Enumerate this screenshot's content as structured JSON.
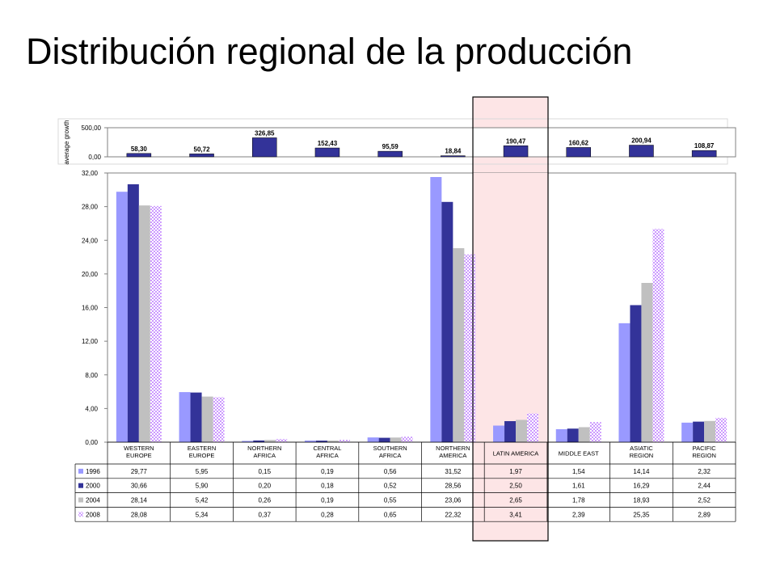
{
  "title": "Distribución regional de la producción",
  "colors": {
    "s1996": "#9999ff",
    "s2000": "#333399",
    "s2004": "#c0c0c0",
    "s2008": "#cc99ff",
    "highlight_fill": "#fde5e6",
    "highlight_stroke": "#000000",
    "growth_bar": "#333399"
  },
  "chart_data": [
    {
      "type": "bar",
      "ylabel": "average growth",
      "categories": [
        "WESTERN EUROPE",
        "EASTERN EUROPE",
        "NORTHERN AFRICA",
        "CENTRAL AFRICA",
        "SOUTHERN AFRICA",
        "NORTHERN AMERICA",
        "LATIN AMERICA",
        "MIDDLE EAST",
        "ASIATIC REGION",
        "PACIFIC REGION"
      ],
      "values": [
        58.3,
        50.72,
        326.85,
        152.43,
        95.59,
        18.84,
        190.47,
        160.62,
        200.94,
        108.87
      ],
      "value_labels": [
        "58,30",
        "50,72",
        "326,85",
        "152,43",
        "95,59",
        "18,84",
        "190,47",
        "160,62",
        "200,94",
        "108,87"
      ],
      "ylim": [
        0,
        500
      ],
      "yticks": [
        "500,00",
        "0,00"
      ]
    },
    {
      "type": "bar",
      "categories": [
        [
          "WESTERN",
          "EUROPE"
        ],
        [
          "EASTERN",
          "EUROPE"
        ],
        [
          "NORTHERN",
          "AFRICA"
        ],
        [
          "CENTRAL",
          "AFRICA"
        ],
        [
          "SOUTHERN",
          "AFRICA"
        ],
        [
          "NORTHERN",
          "AMERICA"
        ],
        [
          "LATIN AMERICA"
        ],
        [
          "MIDDLE EAST"
        ],
        [
          "ASIATIC",
          "REGION"
        ],
        [
          "PACIFIC",
          "REGION"
        ]
      ],
      "ylim": [
        0,
        32
      ],
      "yticks": [
        "0,00",
        "4,00",
        "8,00",
        "12,00",
        "16,00",
        "20,00",
        "24,00",
        "28,00",
        "32,00"
      ],
      "highlight_category": "LATIN AMERICA",
      "series": [
        {
          "name": "1996",
          "values": [
            29.77,
            5.95,
            0.15,
            0.19,
            0.56,
            31.52,
            1.97,
            1.54,
            14.14,
            2.32
          ],
          "labels": [
            "29,77",
            "5,95",
            "0,15",
            "0,19",
            "0,56",
            "31,52",
            "1,97",
            "1,54",
            "14,14",
            "2,32"
          ]
        },
        {
          "name": "2000",
          "values": [
            30.66,
            5.9,
            0.2,
            0.18,
            0.52,
            28.56,
            2.5,
            1.61,
            16.29,
            2.44
          ],
          "labels": [
            "30,66",
            "5,90",
            "0,20",
            "0,18",
            "0,52",
            "28,56",
            "2,50",
            "1,61",
            "16,29",
            "2,44"
          ]
        },
        {
          "name": "2004",
          "values": [
            28.14,
            5.42,
            0.26,
            0.19,
            0.55,
            23.06,
            2.65,
            1.78,
            18.93,
            2.52
          ],
          "labels": [
            "28,14",
            "5,42",
            "0,26",
            "0,19",
            "0,55",
            "23,06",
            "2,65",
            "1,78",
            "18,93",
            "2,52"
          ]
        },
        {
          "name": "2008",
          "values": [
            28.08,
            5.34,
            0.37,
            0.28,
            0.65,
            22.32,
            3.41,
            2.39,
            25.35,
            2.89
          ],
          "labels": [
            "28,08",
            "5,34",
            "0,37",
            "0,28",
            "0,65",
            "22,32",
            "3,41",
            "2,39",
            "25,35",
            "2,89"
          ]
        }
      ]
    }
  ]
}
